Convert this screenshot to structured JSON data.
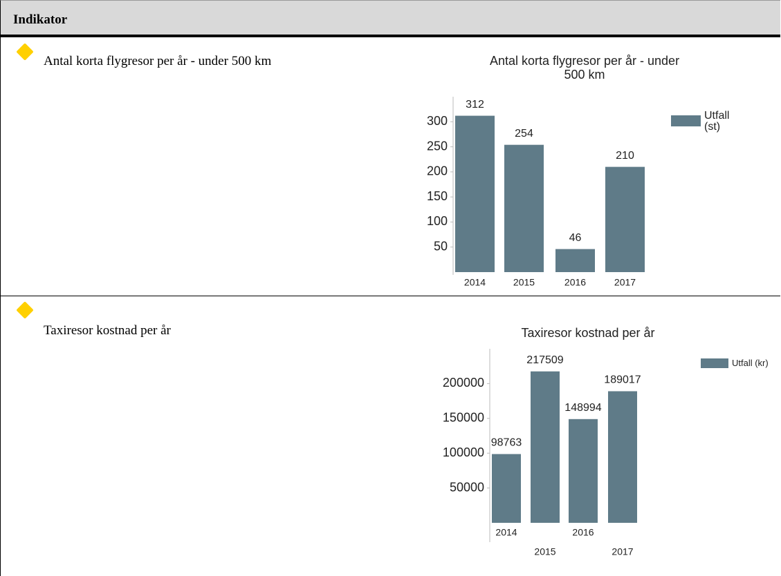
{
  "header": {
    "title": "Indikator"
  },
  "rows": [
    {
      "label": "Antal korta flygresor per år - under 500 km",
      "chart": {
        "type": "bar",
        "title": "Antal korta flygresor per år - under 500 km",
        "categories": [
          "2014",
          "2015",
          "2016",
          "2017"
        ],
        "series": [
          {
            "name": "Utfall (st)",
            "color": "#5f7b88",
            "values": [
              312,
              254,
              46,
              210
            ]
          }
        ],
        "ylim": [
          0,
          350
        ],
        "yticks": [
          50,
          100,
          150,
          200,
          250,
          300
        ]
      }
    },
    {
      "label": "Taxiresor kostnad per år",
      "chart": {
        "type": "bar",
        "title": "Taxiresor kostnad per år",
        "categories": [
          "2014",
          "2015",
          "2016",
          "2017"
        ],
        "series": [
          {
            "name": "Utfall (kr)",
            "color": "#5f7b88",
            "values": [
              98763,
              217509,
              148994,
              189017
            ]
          }
        ],
        "ylim": [
          0,
          250000
        ],
        "yticks": [
          50000,
          100000,
          150000,
          200000
        ]
      }
    }
  ]
}
